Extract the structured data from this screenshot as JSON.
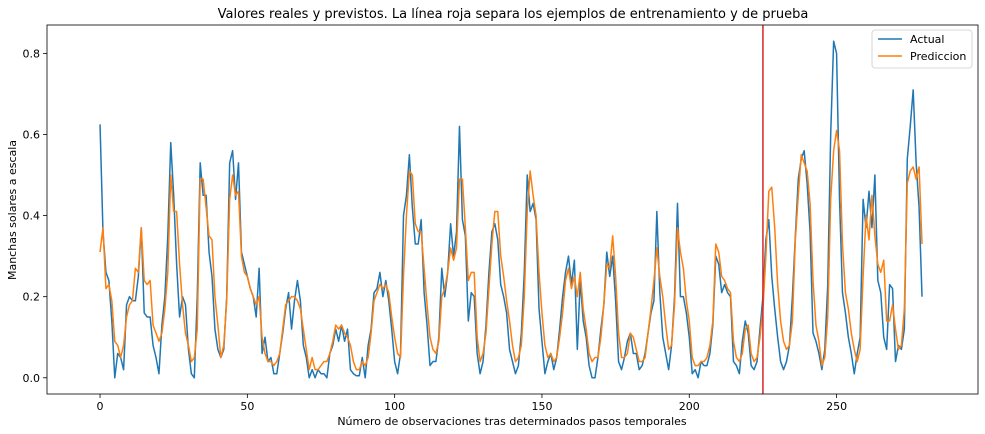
{
  "chart_data": {
    "type": "line",
    "title": "Valores reales y previstos. La línea roja separa los ejemplos de entrenamiento y de prueba",
    "xlabel": "Número de observaciones tras determinados pasos temporales",
    "ylabel": "Manchas solares a escala",
    "xlim": [
      -18,
      298
    ],
    "ylim": [
      -0.04,
      0.87
    ],
    "xticks": [
      0,
      50,
      100,
      150,
      200,
      250
    ],
    "yticks": [
      0.0,
      0.2,
      0.4,
      0.6,
      0.8
    ],
    "ytick_labels": [
      "0.0",
      "0.2",
      "0.4",
      "0.6",
      "0.8"
    ],
    "split_line_x": 225,
    "split_line_color": "#d62728",
    "legend": {
      "position": "top-right",
      "entries": [
        "Actual",
        "Prediccion"
      ]
    },
    "series": [
      {
        "name": "Actual",
        "color": "#1f77b4",
        "values": [
          0.625,
          0.36,
          0.26,
          0.24,
          0.14,
          0.0,
          0.06,
          0.05,
          0.02,
          0.18,
          0.2,
          0.19,
          0.19,
          0.25,
          0.37,
          0.16,
          0.15,
          0.15,
          0.08,
          0.05,
          0.01,
          0.13,
          0.2,
          0.35,
          0.58,
          0.45,
          0.28,
          0.15,
          0.2,
          0.18,
          0.07,
          0.01,
          0.0,
          0.2,
          0.53,
          0.45,
          0.45,
          0.31,
          0.25,
          0.12,
          0.07,
          0.05,
          0.07,
          0.2,
          0.53,
          0.56,
          0.44,
          0.53,
          0.31,
          0.28,
          0.25,
          0.22,
          0.2,
          0.15,
          0.27,
          0.06,
          0.1,
          0.04,
          0.05,
          0.01,
          0.01,
          0.06,
          0.11,
          0.17,
          0.21,
          0.12,
          0.19,
          0.24,
          0.19,
          0.08,
          0.05,
          0.0,
          0.02,
          0.0,
          0.02,
          0.01,
          0.01,
          0.0,
          0.06,
          0.08,
          0.12,
          0.09,
          0.13,
          0.09,
          0.12,
          0.02,
          0.01,
          0.005,
          0.005,
          0.05,
          0.0,
          0.08,
          0.12,
          0.21,
          0.22,
          0.26,
          0.2,
          0.24,
          0.19,
          0.12,
          0.04,
          0.01,
          0.06,
          0.4,
          0.45,
          0.55,
          0.42,
          0.33,
          0.33,
          0.39,
          0.21,
          0.13,
          0.03,
          0.04,
          0.04,
          0.1,
          0.27,
          0.2,
          0.26,
          0.38,
          0.3,
          0.36,
          0.62,
          0.39,
          0.35,
          0.14,
          0.21,
          0.2,
          0.06,
          0.01,
          0.04,
          0.13,
          0.26,
          0.36,
          0.38,
          0.34,
          0.23,
          0.2,
          0.16,
          0.07,
          0.04,
          0.01,
          0.03,
          0.11,
          0.26,
          0.5,
          0.41,
          0.43,
          0.39,
          0.17,
          0.09,
          0.01,
          0.04,
          0.06,
          0.02,
          0.05,
          0.12,
          0.2,
          0.26,
          0.3,
          0.23,
          0.29,
          0.07,
          0.24,
          0.14,
          0.1,
          0.03,
          0.0,
          0.0,
          0.05,
          0.12,
          0.18,
          0.31,
          0.25,
          0.3,
          0.19,
          0.04,
          0.02,
          0.05,
          0.09,
          0.11,
          0.06,
          0.06,
          0.02,
          0.03,
          0.06,
          0.11,
          0.16,
          0.19,
          0.41,
          0.21,
          0.1,
          0.06,
          0.02,
          0.08,
          0.2,
          0.43,
          0.2,
          0.2,
          0.16,
          0.1,
          0.01,
          0.02,
          0.0,
          0.04,
          0.03,
          0.03,
          0.06,
          0.13,
          0.3,
          0.28,
          0.21,
          0.23,
          0.21,
          0.2,
          0.04,
          0.03,
          0.01,
          0.09,
          0.14,
          0.11,
          0.03,
          0.02,
          0.04,
          0.12,
          0.2,
          0.34,
          0.39,
          0.25,
          0.17,
          0.1,
          0.04,
          0.02,
          0.04,
          0.08,
          0.2,
          0.35,
          0.49,
          0.54,
          0.56,
          0.48,
          0.36,
          0.11,
          0.09,
          0.06,
          0.02,
          0.07,
          0.23,
          0.6,
          0.83,
          0.8,
          0.44,
          0.21,
          0.16,
          0.1,
          0.06,
          0.01,
          0.06,
          0.1,
          0.44,
          0.37,
          0.46,
          0.37,
          0.5,
          0.24,
          0.21,
          0.1,
          0.07,
          0.23,
          0.22,
          0.04,
          0.08,
          0.07,
          0.12,
          0.54,
          0.62,
          0.71,
          0.53,
          0.42,
          0.2
        ]
      },
      {
        "name": "Prediccion",
        "color": "#ff7f0e",
        "values": [
          0.31,
          0.37,
          0.22,
          0.23,
          0.19,
          0.09,
          0.08,
          0.05,
          0.08,
          0.15,
          0.18,
          0.19,
          0.27,
          0.26,
          0.37,
          0.24,
          0.23,
          0.24,
          0.13,
          0.11,
          0.09,
          0.11,
          0.17,
          0.26,
          0.5,
          0.41,
          0.41,
          0.28,
          0.18,
          0.11,
          0.08,
          0.04,
          0.05,
          0.12,
          0.49,
          0.49,
          0.42,
          0.35,
          0.34,
          0.2,
          0.13,
          0.05,
          0.08,
          0.19,
          0.44,
          0.5,
          0.45,
          0.46,
          0.3,
          0.26,
          0.25,
          0.22,
          0.2,
          0.18,
          0.2,
          0.1,
          0.06,
          0.04,
          0.04,
          0.03,
          0.04,
          0.06,
          0.12,
          0.18,
          0.19,
          0.2,
          0.2,
          0.19,
          0.17,
          0.12,
          0.07,
          0.02,
          0.05,
          0.02,
          0.02,
          0.03,
          0.04,
          0.04,
          0.06,
          0.09,
          0.13,
          0.12,
          0.13,
          0.11,
          0.1,
          0.08,
          0.04,
          0.02,
          0.02,
          0.04,
          0.03,
          0.05,
          0.11,
          0.19,
          0.21,
          0.23,
          0.22,
          0.23,
          0.21,
          0.15,
          0.1,
          0.06,
          0.05,
          0.25,
          0.4,
          0.51,
          0.5,
          0.38,
          0.36,
          0.36,
          0.27,
          0.18,
          0.1,
          0.07,
          0.06,
          0.09,
          0.2,
          0.22,
          0.26,
          0.32,
          0.29,
          0.32,
          0.49,
          0.49,
          0.37,
          0.24,
          0.26,
          0.26,
          0.1,
          0.04,
          0.06,
          0.11,
          0.22,
          0.33,
          0.41,
          0.41,
          0.3,
          0.25,
          0.19,
          0.14,
          0.08,
          0.04,
          0.05,
          0.08,
          0.2,
          0.41,
          0.51,
          0.45,
          0.4,
          0.26,
          0.16,
          0.08,
          0.05,
          0.06,
          0.04,
          0.05,
          0.1,
          0.16,
          0.24,
          0.27,
          0.22,
          0.25,
          0.2,
          0.26,
          0.17,
          0.12,
          0.06,
          0.04,
          0.05,
          0.05,
          0.1,
          0.18,
          0.28,
          0.27,
          0.35,
          0.25,
          0.11,
          0.05,
          0.05,
          0.06,
          0.11,
          0.1,
          0.07,
          0.04,
          0.04,
          0.05,
          0.11,
          0.17,
          0.24,
          0.32,
          0.25,
          0.2,
          0.13,
          0.07,
          0.08,
          0.18,
          0.37,
          0.31,
          0.27,
          0.19,
          0.14,
          0.05,
          0.03,
          0.03,
          0.04,
          0.04,
          0.05,
          0.08,
          0.14,
          0.33,
          0.31,
          0.25,
          0.24,
          0.22,
          0.21,
          0.09,
          0.05,
          0.04,
          0.06,
          0.12,
          0.13,
          0.06,
          0.04,
          0.05,
          0.1,
          0.17,
          0.3,
          0.46,
          0.47,
          0.37,
          0.23,
          0.14,
          0.09,
          0.07,
          0.08,
          0.14,
          0.34,
          0.45,
          0.55,
          0.53,
          0.51,
          0.43,
          0.24,
          0.13,
          0.09,
          0.03,
          0.05,
          0.15,
          0.44,
          0.56,
          0.61,
          0.56,
          0.33,
          0.21,
          0.17,
          0.11,
          0.07,
          0.04,
          0.07,
          0.25,
          0.4,
          0.34,
          0.45,
          0.35,
          0.28,
          0.26,
          0.29,
          0.14,
          0.14,
          0.18,
          0.12,
          0.07,
          0.08,
          0.17,
          0.48,
          0.51,
          0.52,
          0.49,
          0.52,
          0.33
        ]
      }
    ]
  }
}
